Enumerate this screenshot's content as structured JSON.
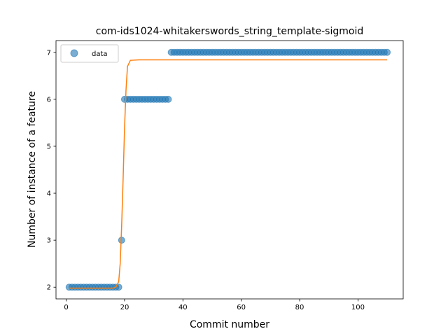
{
  "chart_data": {
    "type": "scatter",
    "title": "com-ids1024-whitakerswords_string_template-sigmoid",
    "xlabel": "Commit number",
    "ylabel": "Number of instance of a feature",
    "xlim": [
      -3.5,
      115.5
    ],
    "ylim": [
      1.75,
      7.25
    ],
    "xticks": [
      0,
      20,
      40,
      60,
      80,
      100
    ],
    "yticks": [
      2,
      3,
      4,
      5,
      6,
      7
    ],
    "legend": {
      "position": "top-left",
      "entries": [
        "data"
      ]
    },
    "colors": {
      "data": "#1f77b4",
      "fit": "#ff7f0e"
    },
    "series": [
      {
        "name": "data",
        "kind": "scatter",
        "segments": [
          {
            "x_start": 1,
            "x_end": 18,
            "y": 2
          },
          {
            "x_start": 19,
            "x_end": 19,
            "y": 3
          },
          {
            "x_start": 20,
            "x_end": 35,
            "y": 6
          },
          {
            "x_start": 36,
            "x_end": 110,
            "y": 7
          }
        ]
      },
      {
        "kind": "line",
        "x": [
          1,
          16,
          17,
          18,
          18.5,
          19,
          19.5,
          20,
          20.5,
          21,
          22,
          25,
          110
        ],
        "y": [
          1.98,
          1.98,
          2.0,
          2.12,
          2.5,
          3.3,
          4.3,
          5.4,
          6.2,
          6.7,
          6.83,
          6.84,
          6.84
        ]
      }
    ]
  }
}
